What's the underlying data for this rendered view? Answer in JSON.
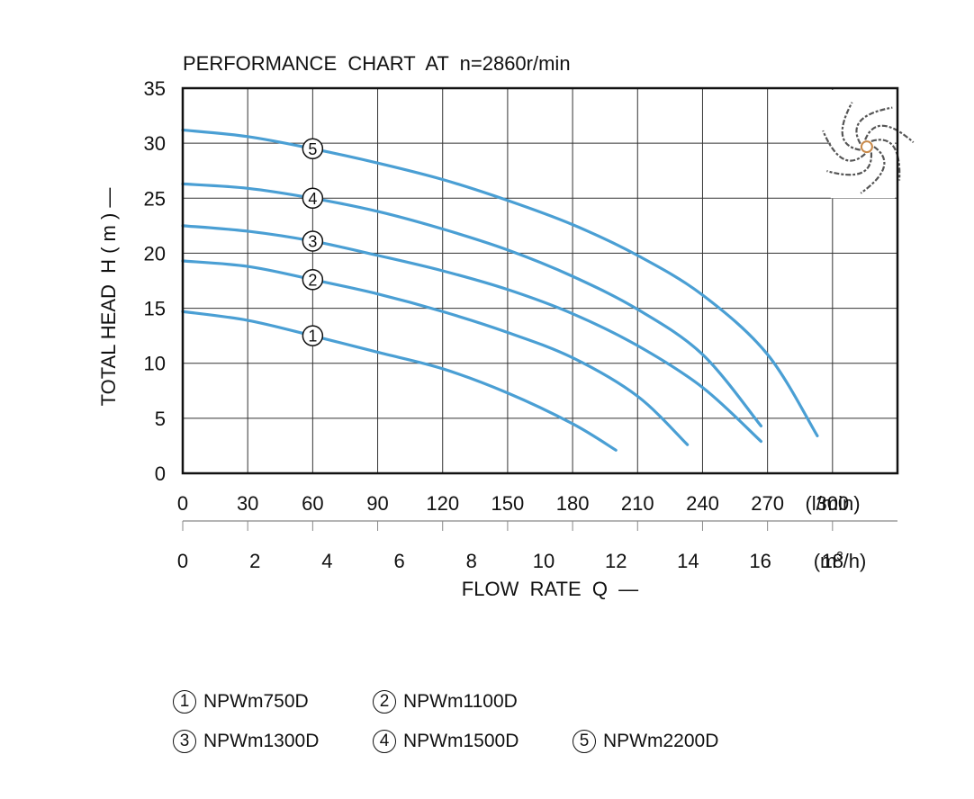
{
  "chart_data": {
    "type": "line",
    "title": "PERFORMANCE  CHART  AT  n=2860r/min",
    "ylabel": "TOTAL HEAD  H ( m ) —",
    "xlabel": "FLOW  RATE  Q  —",
    "x_unit_primary": "(l/min)",
    "x_unit_secondary_prefix": "(m",
    "x_unit_secondary_sup": "3",
    "x_unit_secondary_suffix": "/h)",
    "xlim": [
      0,
      330
    ],
    "ylim": [
      0,
      35
    ],
    "x_ticks": [
      0,
      30,
      60,
      90,
      120,
      150,
      180,
      210,
      240,
      270,
      300
    ],
    "x_ticks_secondary": [
      0,
      2,
      4,
      6,
      8,
      10,
      12,
      14,
      16,
      18
    ],
    "y_ticks": [
      0,
      5,
      10,
      15,
      20,
      25,
      30,
      35
    ],
    "grid": true,
    "line_color": "#4a9fd4",
    "series": [
      {
        "name": "NPWm750D",
        "marker": "1",
        "label_x": 60,
        "x": [
          0,
          30,
          60,
          90,
          120,
          150,
          180,
          200
        ],
        "y": [
          14.7,
          13.9,
          12.5,
          11.0,
          9.5,
          7.3,
          4.5,
          2.1
        ]
      },
      {
        "name": "NPWm1100D",
        "marker": "2",
        "label_x": 60,
        "x": [
          0,
          30,
          60,
          90,
          120,
          150,
          180,
          210,
          233
        ],
        "y": [
          19.3,
          18.8,
          17.6,
          16.3,
          14.7,
          12.8,
          10.5,
          7.0,
          2.6
        ]
      },
      {
        "name": "NPWm1300D",
        "marker": "3",
        "label_x": 60,
        "x": [
          0,
          30,
          60,
          90,
          120,
          150,
          180,
          210,
          240,
          267
        ],
        "y": [
          22.5,
          22.0,
          21.1,
          19.8,
          18.4,
          16.7,
          14.5,
          11.6,
          7.8,
          2.9
        ]
      },
      {
        "name": "NPWm1500D",
        "marker": "4",
        "label_x": 60,
        "x": [
          0,
          30,
          60,
          90,
          120,
          150,
          180,
          210,
          240,
          267
        ],
        "y": [
          26.3,
          25.9,
          25.0,
          23.8,
          22.2,
          20.3,
          17.9,
          14.9,
          10.8,
          4.3
        ]
      },
      {
        "name": "NPWm2200D",
        "marker": "5",
        "label_x": 60,
        "x": [
          0,
          30,
          60,
          90,
          120,
          150,
          180,
          210,
          240,
          270,
          293
        ],
        "y": [
          31.2,
          30.6,
          29.5,
          28.2,
          26.7,
          24.8,
          22.6,
          19.8,
          16.2,
          10.8,
          3.4
        ]
      }
    ]
  },
  "legend": {
    "rows": [
      [
        {
          "marker": "1",
          "label": "NPWm750D"
        },
        {
          "marker": "2",
          "label": "NPWm1100D"
        }
      ],
      [
        {
          "marker": "3",
          "label": "NPWm1300D"
        },
        {
          "marker": "4",
          "label": "NPWm1500D"
        },
        {
          "marker": "5",
          "label": "NPWm2200D"
        }
      ]
    ]
  },
  "impeller_image": "impeller-icon"
}
